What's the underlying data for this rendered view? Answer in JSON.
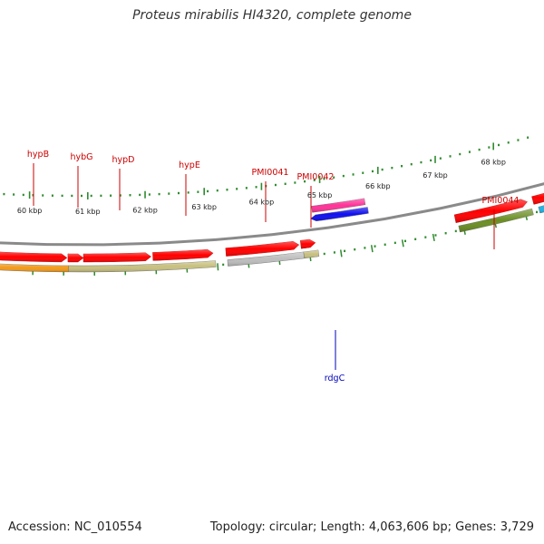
{
  "title": "Proteus mirabilis HI4320, complete genome",
  "footer": {
    "accession": "Accession: NC_010554",
    "summary": "Topology: circular; Length: 4,063,606 bp; Genes: 3,729"
  },
  "colors": {
    "cds": "#ff0000",
    "label_forward": "#cc0000",
    "label_reverse": "#0000bb",
    "backbone": "#8a8a8a",
    "tick": "#2e8b2e"
  },
  "ticks": [
    {
      "label": "60 kbp"
    },
    {
      "label": "61 kbp"
    },
    {
      "label": "62 kbp"
    },
    {
      "label": "63 kbp"
    },
    {
      "label": "64 kbp"
    },
    {
      "label": "65 kbp"
    },
    {
      "label": "66 kbp"
    },
    {
      "label": "67 kbp"
    },
    {
      "label": "68 kbp"
    }
  ],
  "gene_labels": [
    {
      "name": "hypB",
      "strand": "forward"
    },
    {
      "name": "hybG",
      "strand": "forward"
    },
    {
      "name": "hypD",
      "strand": "forward"
    },
    {
      "name": "hypE",
      "strand": "forward"
    },
    {
      "name": "PMI0041",
      "strand": "forward"
    },
    {
      "name": "PMI0042",
      "strand": "forward"
    },
    {
      "name": "PMI0044",
      "strand": "forward"
    },
    {
      "name": "rdgC",
      "strand": "reverse"
    }
  ],
  "features": [
    {
      "name": "hypB-cog",
      "color": "#f39a1a"
    },
    {
      "name": "hyb-cog",
      "color": "#c8c080"
    },
    {
      "name": "pmi0041-cog",
      "color": "#bdbdbd"
    },
    {
      "name": "pmi0042-cog",
      "color": "#c8c080"
    },
    {
      "name": "pmi0044-cog",
      "color": "#6b8e23"
    },
    {
      "name": "cyan-cog",
      "color": "#1eb4e6"
    },
    {
      "name": "rdgC-cds",
      "color": "#1010ee"
    },
    {
      "name": "rdgC-cog",
      "color": "#ff3399"
    }
  ]
}
